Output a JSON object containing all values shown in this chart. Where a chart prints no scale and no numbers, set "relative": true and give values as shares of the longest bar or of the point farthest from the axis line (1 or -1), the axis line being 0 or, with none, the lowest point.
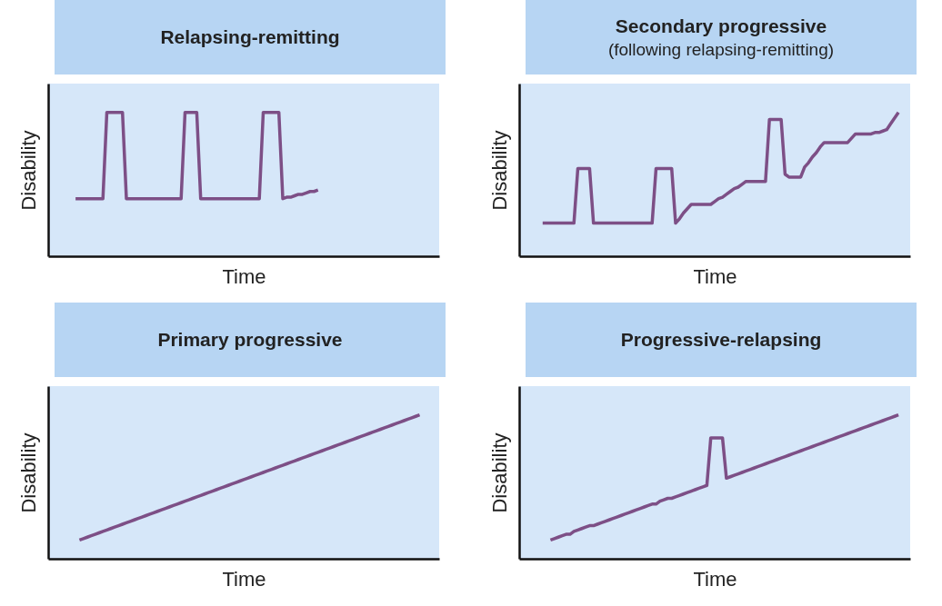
{
  "chart_data": [
    {
      "type": "line",
      "title": "Relapsing-remitting",
      "xlabel": "Time",
      "ylabel": "Disability",
      "relative": true,
      "tick_labels": false,
      "categories": [
        null,
        null,
        null,
        null,
        null,
        null,
        null,
        null,
        null,
        null,
        null,
        null,
        null,
        null,
        null,
        null,
        null,
        null,
        null,
        null,
        null,
        null,
        null,
        null,
        null,
        null,
        null,
        null,
        null,
        null,
        null,
        null,
        null,
        null,
        null,
        null,
        null,
        null,
        null,
        null,
        null,
        null,
        null,
        null,
        null,
        null,
        null,
        null,
        null,
        null,
        null,
        null,
        null,
        null,
        null,
        null,
        null,
        null,
        null,
        null,
        null,
        null,
        null,
        null,
        null,
        null,
        null,
        null,
        null,
        null,
        null,
        null,
        null,
        null,
        null,
        null,
        null,
        null,
        null,
        null,
        null,
        null,
        null,
        null,
        null,
        null,
        null,
        null,
        null,
        null,
        null,
        null,
        null,
        null,
        null,
        null,
        null,
        null,
        null,
        null,
        null
      ],
      "series": [
        {
          "color": "#7d4f86",
          "values": [
            null,
            null,
            null,
            null,
            null,
            null,
            null,
            0.4,
            0.4,
            0.4,
            0.4,
            0.4,
            0.4,
            0.4,
            0.4,
            1,
            1,
            1,
            1,
            1,
            0.4,
            0.4,
            0.4,
            0.4,
            0.4,
            0.4,
            0.4,
            0.4,
            0.4,
            0.4,
            0.4,
            0.4,
            0.4,
            0.4,
            0.4,
            1,
            1,
            1,
            1,
            0.4,
            0.4,
            0.4,
            0.4,
            0.4,
            0.4,
            0.4,
            0.4,
            0.4,
            0.4,
            0.4,
            0.4,
            0.4,
            0.4,
            0.4,
            0.4,
            1,
            1,
            1,
            1,
            1,
            0.4,
            0.41,
            0.41,
            0.42,
            0.43,
            0.43,
            0.44,
            0.45,
            0.45,
            0.46,
            null,
            null,
            null,
            null,
            null,
            null,
            null,
            null,
            null,
            null,
            null,
            null,
            null,
            null,
            null,
            null,
            null,
            null,
            null,
            null,
            null,
            null,
            null,
            null,
            null,
            null,
            null,
            null,
            null,
            null,
            null
          ]
        }
      ]
    },
    {
      "type": "line",
      "title": "Secondary progressive",
      "subtitle": "(following relapsing-remitting)",
      "xlabel": "Time",
      "ylabel": "Disability",
      "relative": true,
      "tick_labels": false,
      "categories": [
        null,
        null,
        null,
        null,
        null,
        null,
        null,
        null,
        null,
        null,
        null,
        null,
        null,
        null,
        null,
        null,
        null,
        null,
        null,
        null,
        null,
        null,
        null,
        null,
        null,
        null,
        null,
        null,
        null,
        null,
        null,
        null,
        null,
        null,
        null,
        null,
        null,
        null,
        null,
        null,
        null,
        null,
        null,
        null,
        null,
        null,
        null,
        null,
        null,
        null,
        null,
        null,
        null,
        null,
        null,
        null,
        null,
        null,
        null,
        null,
        null,
        null,
        null,
        null,
        null,
        null,
        null,
        null,
        null,
        null,
        null,
        null,
        null,
        null,
        null,
        null,
        null,
        null,
        null,
        null,
        null,
        null,
        null,
        null,
        null,
        null,
        null,
        null,
        null,
        null,
        null,
        null,
        null,
        null,
        null,
        null,
        null,
        null,
        null,
        null,
        null
      ],
      "series": [
        {
          "color": "#7d4f86",
          "values": [
            null,
            null,
            null,
            null,
            null,
            null,
            0.23,
            0.23,
            0.23,
            0.23,
            0.23,
            0.23,
            0.23,
            0.23,
            0.23,
            0.61,
            0.61,
            0.61,
            0.61,
            0.23,
            0.23,
            0.23,
            0.23,
            0.23,
            0.23,
            0.23,
            0.23,
            0.23,
            0.23,
            0.23,
            0.23,
            0.23,
            0.23,
            0.23,
            0.23,
            0.61,
            0.61,
            0.61,
            0.61,
            0.61,
            0.23,
            0.26,
            0.3,
            0.33,
            0.36,
            0.36,
            0.36,
            0.36,
            0.36,
            0.36,
            0.38,
            0.4,
            0.41,
            0.43,
            0.45,
            0.47,
            0.48,
            0.5,
            0.52,
            0.52,
            0.52,
            0.52,
            0.52,
            0.52,
            0.95,
            0.95,
            0.95,
            0.95,
            0.57,
            0.55,
            0.55,
            0.55,
            0.55,
            0.62,
            0.65,
            0.69,
            0.72,
            0.76,
            0.79,
            0.79,
            0.79,
            0.79,
            0.79,
            0.79,
            0.79,
            0.82,
            0.85,
            0.85,
            0.85,
            0.85,
            0.85,
            0.86,
            0.86,
            0.87,
            0.88,
            0.92,
            0.96,
            1,
            null,
            null,
            null
          ]
        }
      ]
    },
    {
      "type": "line",
      "title": "Primary progressive",
      "xlabel": "Time",
      "ylabel": "Disability",
      "relative": true,
      "tick_labels": false,
      "categories": [
        null,
        null,
        null,
        null,
        null,
        null,
        null,
        null,
        null,
        null,
        null,
        null,
        null,
        null,
        null,
        null,
        null,
        null,
        null,
        null,
        null,
        null,
        null,
        null,
        null,
        null,
        null,
        null,
        null,
        null,
        null,
        null,
        null,
        null,
        null,
        null,
        null,
        null,
        null,
        null,
        null,
        null,
        null,
        null,
        null,
        null,
        null,
        null,
        null,
        null,
        null,
        null,
        null,
        null,
        null,
        null,
        null,
        null,
        null,
        null,
        null,
        null,
        null,
        null,
        null,
        null,
        null,
        null,
        null,
        null,
        null,
        null,
        null,
        null,
        null,
        null,
        null,
        null,
        null,
        null,
        null,
        null,
        null,
        null,
        null,
        null,
        null,
        null,
        null,
        null,
        null,
        null,
        null,
        null,
        null,
        null,
        null,
        null,
        null,
        null,
        null
      ],
      "series": [
        {
          "color": "#7d4f86",
          "values": [
            null,
            null,
            null,
            null,
            null,
            null,
            null,
            null,
            0.13,
            0.14,
            0.15,
            0.16,
            0.17,
            0.18,
            0.19,
            0.2,
            0.21,
            0.22,
            0.23,
            0.24,
            0.25,
            0.26,
            0.27,
            0.28,
            0.29,
            0.3,
            0.31,
            0.32,
            0.33,
            0.34,
            0.35,
            0.36,
            0.37,
            0.38,
            0.39,
            0.4,
            0.41,
            0.42,
            0.43,
            0.44,
            0.45,
            0.46,
            0.47,
            0.48,
            0.49,
            0.5,
            0.51,
            0.52,
            0.53,
            0.54,
            0.55,
            0.56,
            0.57,
            0.58,
            0.59,
            0.6,
            0.61,
            0.62,
            0.63,
            0.64,
            0.65,
            0.66,
            0.67,
            0.68,
            0.69,
            0.7,
            0.71,
            0.72,
            0.73,
            0.74,
            0.75,
            0.76,
            0.77,
            0.78,
            0.79,
            0.8,
            0.81,
            0.82,
            0.83,
            0.84,
            0.85,
            0.86,
            0.87,
            0.88,
            0.89,
            0.9,
            0.91,
            0.92,
            0.93,
            0.94,
            0.95,
            0.96,
            0.97,
            0.98,
            0.99,
            1,
            null,
            null,
            null,
            null,
            null
          ]
        }
      ]
    },
    {
      "type": "line",
      "title": "Progressive-relapsing",
      "xlabel": "Time",
      "ylabel": "Disability",
      "relative": true,
      "tick_labels": false,
      "categories": [
        null,
        null,
        null,
        null,
        null,
        null,
        null,
        null,
        null,
        null,
        null,
        null,
        null,
        null,
        null,
        null,
        null,
        null,
        null,
        null,
        null,
        null,
        null,
        null,
        null,
        null,
        null,
        null,
        null,
        null,
        null,
        null,
        null,
        null,
        null,
        null,
        null,
        null,
        null,
        null,
        null,
        null,
        null,
        null,
        null,
        null,
        null,
        null,
        null,
        null,
        null,
        null,
        null,
        null,
        null,
        null,
        null,
        null,
        null,
        null,
        null,
        null,
        null,
        null,
        null,
        null,
        null,
        null,
        null,
        null,
        null,
        null,
        null,
        null,
        null,
        null,
        null,
        null,
        null,
        null,
        null,
        null,
        null,
        null,
        null,
        null,
        null,
        null,
        null,
        null,
        null,
        null,
        null,
        null,
        null,
        null,
        null,
        null,
        null,
        null,
        null
      ],
      "series": [
        {
          "color": "#7d4f86",
          "values": [
            null,
            null,
            null,
            null,
            null,
            null,
            null,
            null,
            0.13,
            0.14,
            0.15,
            0.16,
            0.17,
            0.17,
            0.19,
            0.2,
            0.21,
            0.22,
            0.23,
            0.23,
            0.24,
            0.25,
            0.26,
            0.27,
            0.28,
            0.29,
            0.3,
            0.31,
            0.32,
            0.33,
            0.34,
            0.35,
            0.36,
            0.37,
            0.38,
            0.38,
            0.4,
            0.41,
            0.42,
            0.42,
            0.43,
            0.44,
            0.45,
            0.46,
            0.47,
            0.48,
            0.49,
            0.5,
            0.51,
            0.84,
            0.84,
            0.84,
            0.84,
            0.56,
            0.57,
            0.58,
            0.59,
            0.6,
            0.61,
            0.62,
            0.63,
            0.64,
            0.65,
            0.66,
            0.67,
            0.68,
            0.69,
            0.7,
            0.71,
            0.72,
            0.73,
            0.74,
            0.75,
            0.76,
            0.77,
            0.78,
            0.79,
            0.8,
            0.81,
            0.82,
            0.83,
            0.84,
            0.85,
            0.86,
            0.87,
            0.88,
            0.89,
            0.9,
            0.91,
            0.92,
            0.93,
            0.94,
            0.95,
            0.96,
            0.97,
            0.98,
            0.99,
            1,
            null,
            null,
            null
          ]
        }
      ]
    }
  ]
}
